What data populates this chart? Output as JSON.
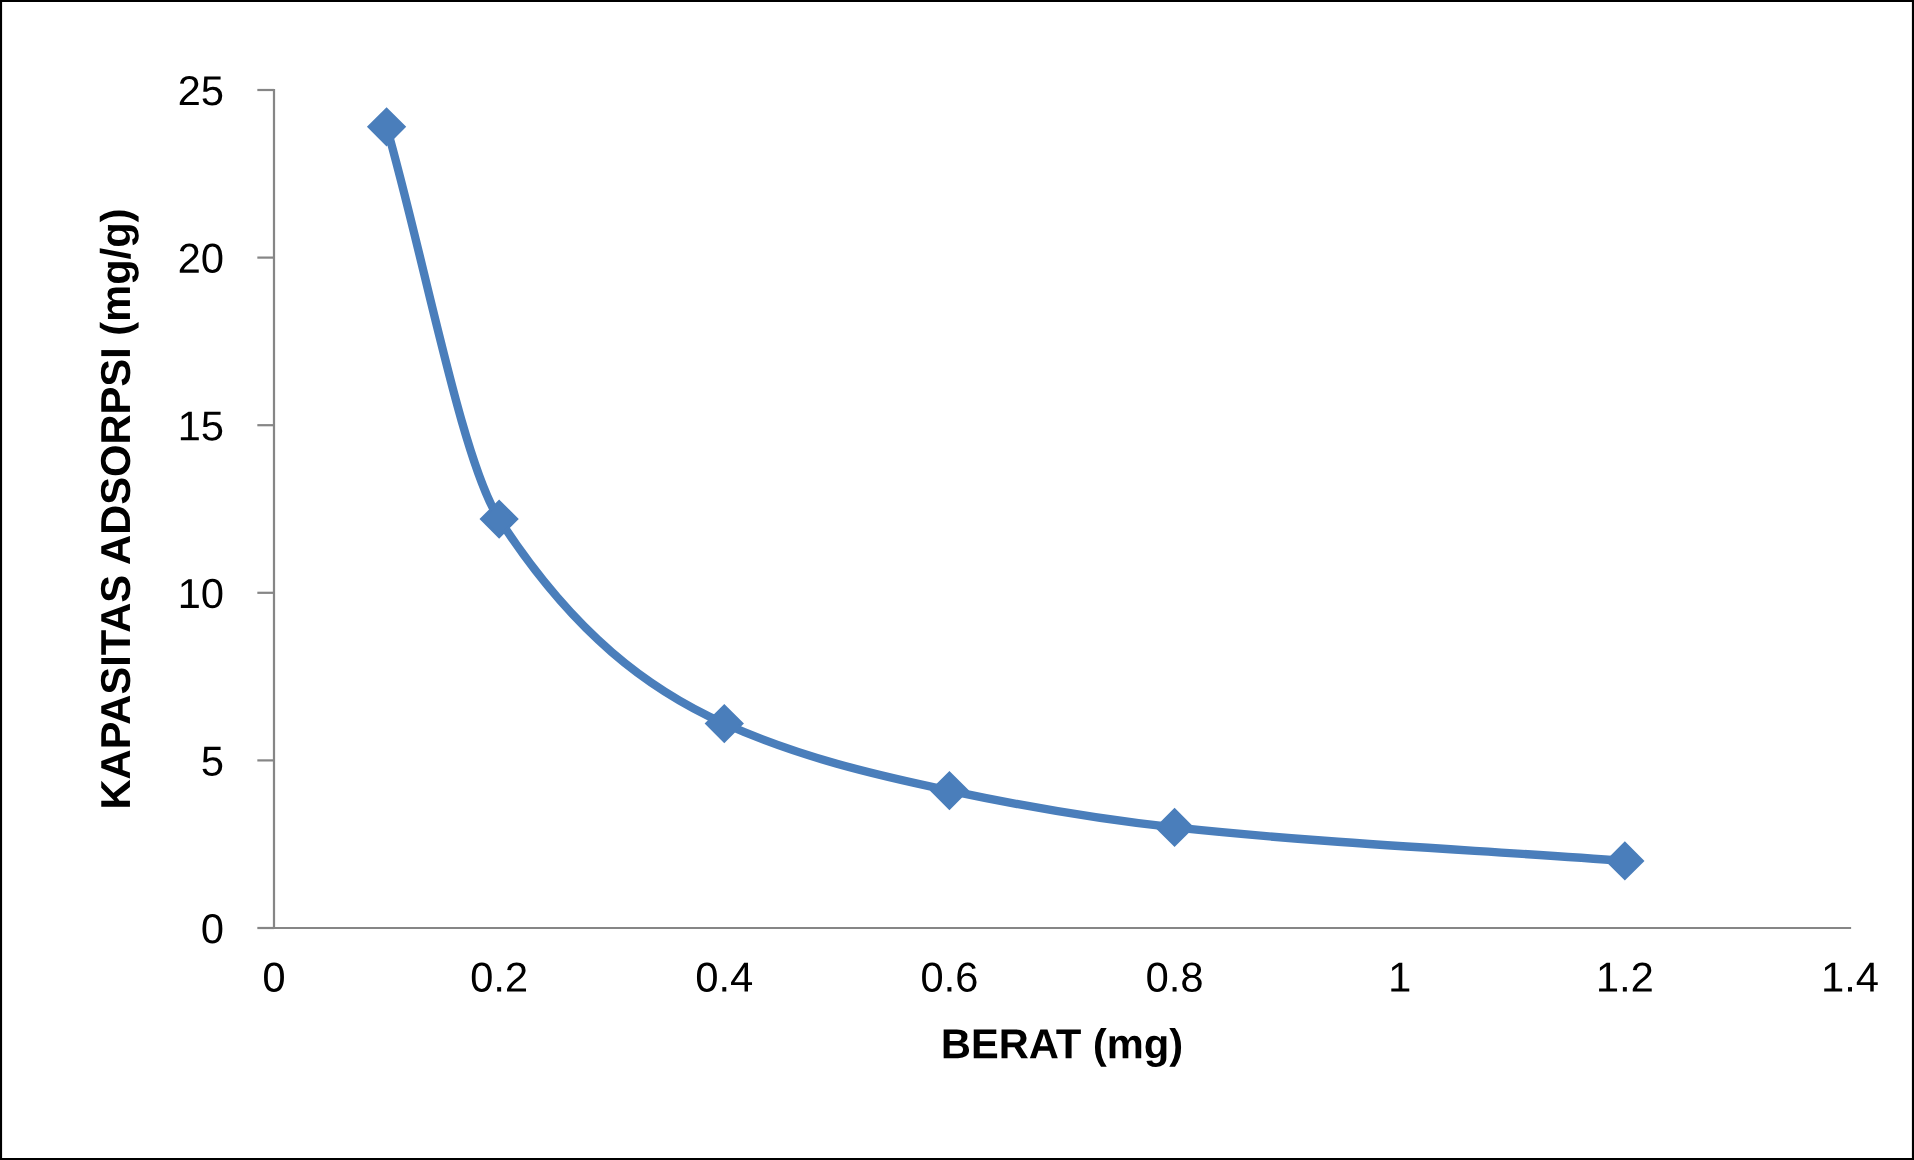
{
  "chart_data": {
    "type": "line",
    "xlabel": "BERAT (mg)",
    "ylabel": "KAPASITAS ADSORPSI (mg/g)",
    "x": [
      0.1,
      0.2,
      0.4,
      0.6,
      0.8,
      1.2
    ],
    "series": [
      {
        "color": "#4a7ebb",
        "values": [
          23.9,
          12.2,
          6.1,
          4.1,
          3.0,
          2.0
        ]
      }
    ],
    "xlim": [
      0,
      1.4
    ],
    "xticks": [
      0,
      0.2,
      0.4,
      0.6,
      0.8,
      1,
      1.2,
      1.4
    ],
    "ylim": [
      0,
      25
    ],
    "yticks": [
      0,
      5,
      10,
      15,
      20,
      25
    ],
    "marker": "diamond",
    "line_style": "solid",
    "grid": false,
    "legend": false
  }
}
